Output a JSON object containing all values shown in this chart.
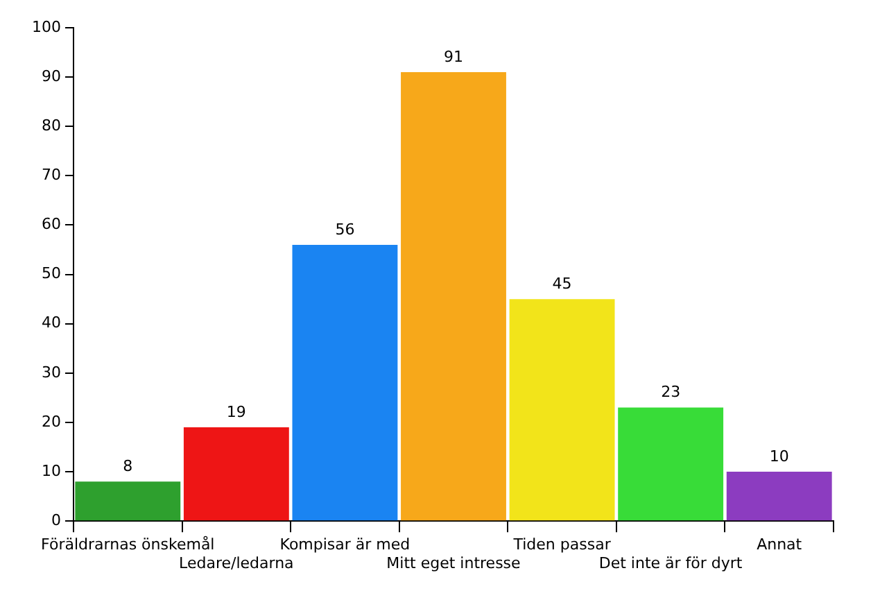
{
  "chart_data": {
    "type": "bar",
    "categories": [
      "Föräldrarnas önskemål",
      "Ledare/ledarna",
      "Kompisar är med",
      "Mitt eget intresse",
      "Tiden passar",
      "Det inte är för dyrt",
      "Annat"
    ],
    "values": [
      8,
      19,
      56,
      91,
      45,
      23,
      10
    ],
    "colors": [
      "#2ea02e",
      "#ee1515",
      "#1a84f2",
      "#f7a81a",
      "#f2e41a",
      "#38dc38",
      "#8c3cc0"
    ],
    "ylim": [
      0,
      100
    ],
    "yticks": [
      0,
      10,
      20,
      30,
      40,
      50,
      60,
      70,
      80,
      90,
      100
    ],
    "data_labels": true,
    "grid": false,
    "legend": false
  }
}
